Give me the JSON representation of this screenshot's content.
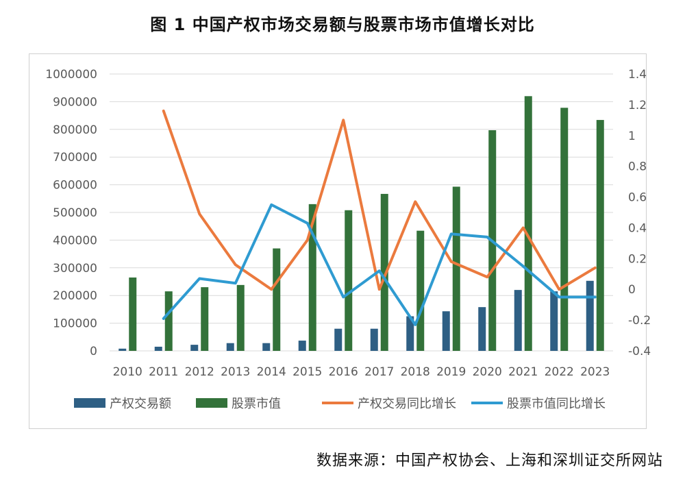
{
  "title": "图 1 中国产权市场交易额与股票市场市值增长对比",
  "source": "数据来源：中国产权协会、上海和深圳证交所网站",
  "chart_data": {
    "type": "bar",
    "categories": [
      "2010",
      "2011",
      "2012",
      "2013",
      "2014",
      "2015",
      "2016",
      "2017",
      "2018",
      "2019",
      "2020",
      "2021",
      "2022",
      "2023"
    ],
    "y_left": {
      "min": 0,
      "max": 1000000,
      "ticks": [
        "0",
        "100000",
        "200000",
        "300000",
        "400000",
        "500000",
        "600000",
        "700000",
        "800000",
        "900000",
        "1000000"
      ]
    },
    "y_right": {
      "min": -0.4,
      "max": 1.4,
      "ticks": [
        "-0.4",
        "-0.2",
        "0",
        "0.2",
        "0.4",
        "0.6",
        "0.8",
        "1",
        "1.2",
        "1.4"
      ]
    },
    "grid": true,
    "legend_position": "bottom",
    "series": [
      {
        "name": "产权交易额",
        "kind": "bar",
        "axis": "left",
        "color": "#2e5f84",
        "values": [
          8000,
          15000,
          22000,
          28000,
          28000,
          37000,
          80000,
          80000,
          125000,
          143000,
          158000,
          220000,
          215000,
          253000
        ]
      },
      {
        "name": "股票市值",
        "kind": "bar",
        "axis": "left",
        "color": "#33723a",
        "values": [
          265000,
          215000,
          230000,
          238000,
          370000,
          530000,
          508000,
          567000,
          434000,
          593000,
          797000,
          920000,
          878000,
          834000
        ]
      },
      {
        "name": "产权交易同比增长",
        "kind": "line",
        "axis": "right",
        "color": "#eb7a3e",
        "values": [
          null,
          1.16,
          0.49,
          0.16,
          0.0,
          0.32,
          1.1,
          0.0,
          0.57,
          0.18,
          0.08,
          0.4,
          0.0,
          0.14
        ]
      },
      {
        "name": "股票市值同比增长",
        "kind": "line",
        "axis": "right",
        "color": "#2f9bd1",
        "values": [
          null,
          -0.19,
          0.07,
          0.04,
          0.55,
          0.43,
          -0.05,
          0.12,
          -0.23,
          0.36,
          0.34,
          0.15,
          -0.05,
          -0.05
        ]
      }
    ]
  }
}
